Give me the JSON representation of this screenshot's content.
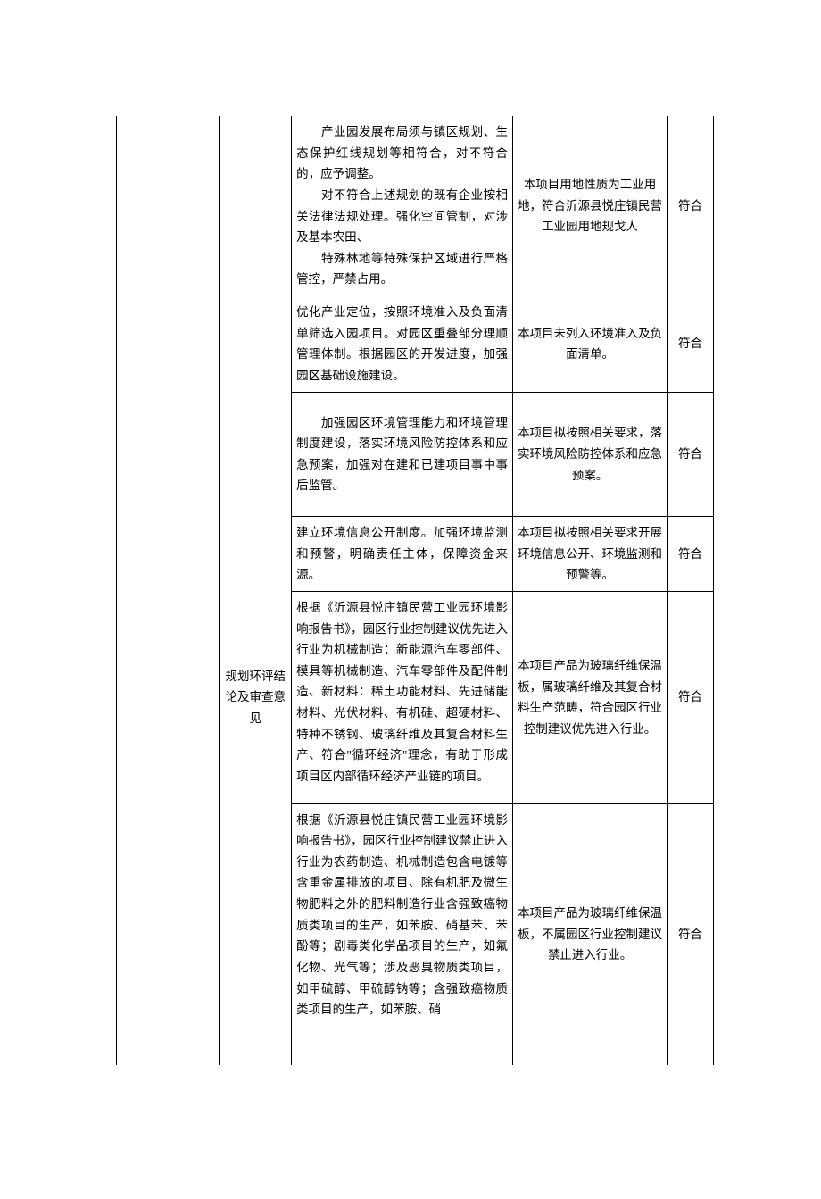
{
  "table": {
    "col2_header": "规划环评结论及审查意见",
    "rows": [
      {
        "c3": "　　产业园发展布局须与镇区规划、生态保护红线规划等相符合，对不符合的，应予调整。\n　　对不符合上述规划的既有企业按相关法律法规处理。强化空间管制，对涉及基本农田、\n　　特殊林地等特殊保护区域进行严格管控，严禁占用。",
        "c4": "本项目用地性质为工业用地，符合沂源县悦庄镇民营工业园用地规戈人",
        "c5": "符合"
      },
      {
        "c3": "优化产业定位，按照环境准入及负面清单筛选入园项目。对园区重叠部分理顺管理体制。根据园区的开发进度，加强园区基础设施建设。",
        "c4": "本项目未列入环境准入及负面清单。",
        "c5": "符合"
      },
      {
        "c3": "　　加强园区环境管理能力和环境管理制度建设，落实环境风险防控体系和应急预案，加强对在建和已建项目事中事后监管。",
        "c4": "本项目拟按照相关要求，落实环境风险防控体系和应急预案。",
        "c5": "符合"
      },
      {
        "c3": "建立环境信息公开制度。加强环境监测和预警，明确责任主体，保障资金来源。",
        "c4": "本项目拟按照相关要求开展环境信息公开、环境监测和预警等。",
        "c5": "符合"
      },
      {
        "c3": "根据《沂源县悦庄镇民营工业园环境影响报告书》，园区行业控制建议优先进入行业为机械制造：新能源汽车零部件、模具等机械制造、汽车零部件及配件制造、新材料：稀土功能材料、先进储能材料、光伏材料、有机硅、超硬材料、特种不锈钢、玻璃纤维及其复合材料生产、符合\"循环经济\"理念，有助于形成项目区内部循环经济产业链的项目。",
        "c4": "本项目产品为玻璃纤维保温板，属玻璃纤维及其复合材料生产范畴，符合园区行业控制建议优先进入行业。",
        "c5": "符合"
      },
      {
        "c3": "根据《沂源县悦庄镇民营工业园环境影响报告书》，园区行业控制建议禁止进入行业为农药制造、机械制造包含电镀等含重金属排放的项目、除有机肥及微生物肥料之外的肥料制造行业含强致癌物质类项目的生产，如苯胺、硝基苯、苯酚等；剧毒类化学品项目的生产，如氟化物、光气等；涉及恶臭物质类项目，如甲硫醇、甲硫醇钠等；含强致癌物质类项目的生产，如苯胺、硝",
        "c4": "本项目产品为玻璃纤维保温板，不属园区行业控制建议禁止进入行业。",
        "c5": "符合"
      }
    ]
  },
  "style": {
    "background_color": "#ffffff",
    "text_color": "#000000",
    "border_color": "#000000",
    "font_family": "SimSun",
    "font_size": 13.5
  }
}
